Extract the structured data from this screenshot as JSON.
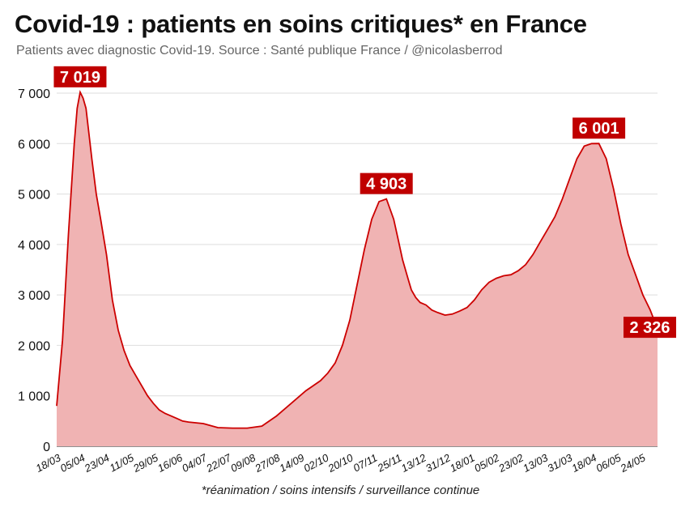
{
  "header": {
    "title": "Covid-19 : patients en soins critiques* en France",
    "subtitle": "Patients avec diagnostic Covid-19. Source : Santé publique France / @nicolasberrod"
  },
  "footnote": "*réanimation / soins intensifs / surveillance continue",
  "colors": {
    "line": "#cc0000",
    "fill": "#f0b3b3",
    "label_bg": "#c00000",
    "grid": "#dddddd"
  },
  "chart_data": {
    "type": "area",
    "title": "Covid-19 : patients en soins critiques* en France",
    "subtitle": "Patients avec diagnostic Covid-19. Source : Santé publique France / @nicolasberrod",
    "xlabel": "",
    "ylabel": "",
    "ylim": [
      0,
      7000
    ],
    "yticks": [
      0,
      1000,
      2000,
      3000,
      4000,
      5000,
      6000,
      7000
    ],
    "ytick_labels": [
      "0",
      "1 000",
      "2 000",
      "3 000",
      "4 000",
      "5 000",
      "6 000",
      "7 000"
    ],
    "xtick_labels": [
      "18/03",
      "05/04",
      "23/04",
      "11/05",
      "29/05",
      "16/06",
      "04/07",
      "22/07",
      "09/08",
      "27/08",
      "14/09",
      "02/10",
      "20/10",
      "07/11",
      "25/11",
      "13/12",
      "31/12",
      "18/01",
      "05/02",
      "23/02",
      "13/03",
      "31/03",
      "18/04",
      "06/05",
      "24/05"
    ],
    "grid": true,
    "series": [
      {
        "x": [
          0,
          4,
          8,
          12,
          14,
          16,
          18,
          20,
          22,
          24,
          27,
          30,
          34,
          38,
          42,
          46,
          50,
          54,
          58,
          62,
          66,
          70,
          74,
          78,
          82,
          86,
          90,
          100,
          110,
          120,
          130,
          140,
          150,
          160,
          170,
          180,
          185,
          190,
          195,
          200,
          205,
          210,
          215,
          220,
          225,
          230,
          233,
          236,
          238,
          240,
          242,
          245,
          248,
          252,
          256,
          260,
          265,
          270,
          275,
          280,
          285,
          290,
          295,
          300,
          305,
          310,
          315,
          320,
          325,
          330,
          335,
          340,
          345,
          350,
          355,
          360,
          365,
          370,
          375,
          380,
          385,
          390,
          395,
          400,
          405,
          410,
          415,
          420,
          425,
          430,
          432,
          435,
          440,
          444,
          448,
          453
        ],
        "y": [
          800,
          2100,
          4200,
          6000,
          6700,
          7019,
          6900,
          6700,
          6200,
          5700,
          5000,
          4500,
          3800,
          2900,
          2300,
          1900,
          1600,
          1400,
          1200,
          1000,
          850,
          720,
          650,
          600,
          550,
          500,
          480,
          450,
          370,
          360,
          360,
          400,
          600,
          850,
          1100,
          1300,
          1450,
          1650,
          2000,
          2500,
          3200,
          3900,
          4500,
          4850,
          4903,
          4500,
          4100,
          3700,
          3500,
          3300,
          3100,
          2950,
          2850,
          2800,
          2700,
          2650,
          2600,
          2620,
          2680,
          2750,
          2900,
          3100,
          3250,
          3330,
          3380,
          3400,
          3480,
          3600,
          3800,
          4050,
          4300,
          4550,
          4900,
          5300,
          5700,
          5950,
          6000,
          6001,
          5700,
          5100,
          4400,
          3800,
          3400,
          3000,
          2700,
          2326,
          null,
          null,
          null,
          null,
          null,
          null,
          null,
          null,
          null,
          null
        ]
      }
    ],
    "peak_labels": [
      {
        "value": 7019,
        "text": "7 019"
      },
      {
        "value": 4903,
        "text": "4 903"
      },
      {
        "value": 6001,
        "text": "6 001"
      },
      {
        "value": 2326,
        "text": "2 326"
      }
    ]
  }
}
